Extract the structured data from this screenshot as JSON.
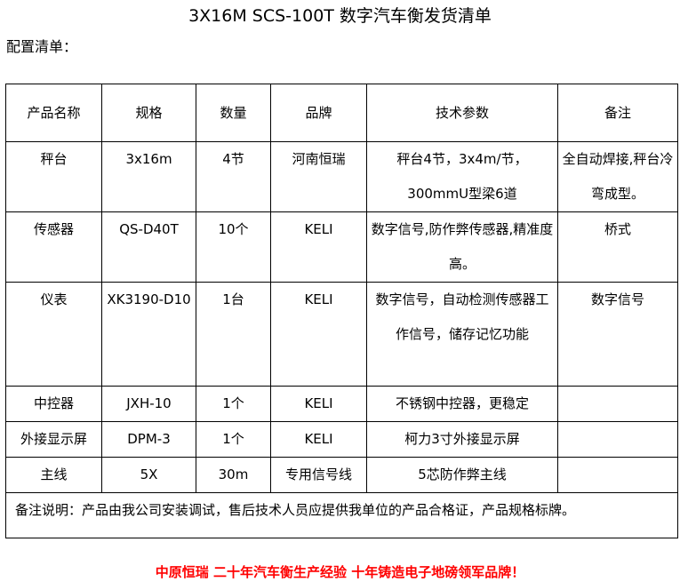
{
  "title": "3X16M SCS-100T 数字汽车衡发货清单",
  "subtitle": "配置清单：",
  "table": {
    "headers": [
      "产品名称",
      "规格",
      "数量",
      "品牌",
      "技术参数",
      "备注"
    ],
    "rows": [
      [
        "秤台",
        "3x16m",
        "4节",
        "河南恒瑞",
        "秤台4节，3x4m/节，300mmU型梁6道",
        "全自动焊接,秤台冷弯成型。"
      ],
      [
        "传感器",
        "QS-D40T",
        "10个",
        "KELI",
        "数字信号,防作弊传感器,精准度高。",
        "桥式"
      ],
      [
        "仪表",
        "XK3190-D10",
        "1台",
        "KELI",
        "数字信号，自动检测传感器工作信号，储存记忆功能",
        "数字信号"
      ],
      [
        "中控器",
        "JXH-10",
        "1个",
        "KELI",
        "不锈钢中控器，更稳定",
        ""
      ],
      [
        "外接显示屏",
        "DPM-3",
        "1个",
        "KELI",
        "柯力3寸外接显示屏",
        ""
      ],
      [
        "主线",
        "5X",
        "30m",
        "专用信号线",
        "5芯防作弊主线",
        ""
      ]
    ],
    "note": "备注说明：产品由我公司安装调试，售后技术人员应提供我单位的产品合格证，产品规格标牌。"
  },
  "footer": "中原恒瑞 二十年汽车衡生产经验 十年铸造电子地磅领军品牌！",
  "colors": {
    "footer": "#ff0000"
  }
}
